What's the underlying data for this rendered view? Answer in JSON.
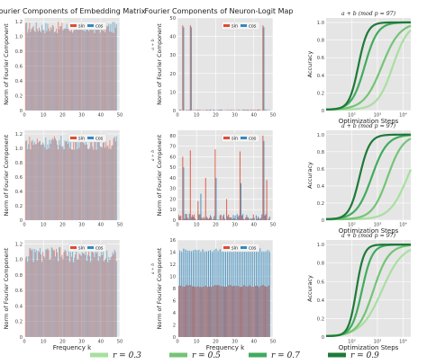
{
  "columns": {
    "embedding_title": "Fourier Components of Embedding Matrix",
    "neuron_title": "Fourier Components of Neuron-Logit Map"
  },
  "common": {
    "ylabel_fourier": "Norm of Fourier Component",
    "xlabel_frequency": "Frequency k",
    "ylabel_accuracy": "Accuracy",
    "xlabel_steps": "Optimization Steps",
    "legend_sin": "sin",
    "legend_cos": "cos",
    "acc_title": "a + b  (mod p = 97)",
    "side_label": "a + b"
  },
  "legend": {
    "items": [
      {
        "label": "r = 0.3",
        "color": "#a8dfa0"
      },
      {
        "label": "r = 0.5",
        "color": "#74c476"
      },
      {
        "label": "r = 0.7",
        "color": "#41ab5d"
      },
      {
        "label": "r = 0.9",
        "color": "#1f7a38"
      }
    ]
  },
  "colors": {
    "sin": "#e24a33",
    "cos": "#348abd",
    "panel_bg": "#e5e5e5",
    "grid": "#ffffff"
  },
  "chart_data": [
    {
      "type": "bar",
      "title": "Fourier Components of Embedding Matrix",
      "ylabel": "Norm of Fourier Component",
      "xlabel": "",
      "xlim": [
        0,
        50
      ],
      "ylim": [
        0,
        1.25
      ],
      "xticks": [
        0,
        10,
        20,
        30,
        40,
        50
      ],
      "yticks": [
        0,
        0.2,
        0.4,
        0.6,
        0.8,
        1.0,
        1.2
      ],
      "series": [
        {
          "name": "sin",
          "mode": "noise",
          "base": 1.12,
          "amp": 0.08
        },
        {
          "name": "cos",
          "mode": "noise",
          "base": 1.12,
          "amp": 0.08
        }
      ]
    },
    {
      "type": "bar",
      "title": "Fourier Components of Neuron-Logit Map",
      "ylabel": "Norm of Fourier Component",
      "xlabel": "",
      "xlim": [
        0,
        50
      ],
      "ylim": [
        0,
        50
      ],
      "xticks": [
        0,
        10,
        20,
        30,
        40,
        50
      ],
      "yticks": [
        0,
        10,
        20,
        30,
        40,
        50
      ],
      "series": [
        {
          "name": "sin",
          "mode": "spikes",
          "spikes": [
            [
              3,
              46
            ],
            [
              7,
              46
            ],
            [
              45,
              46
            ]
          ]
        },
        {
          "name": "cos",
          "mode": "spikes",
          "spikes": [
            [
              3,
              45
            ],
            [
              7,
              45
            ],
            [
              45,
              45
            ]
          ]
        }
      ]
    },
    {
      "type": "line",
      "title": "a + b (mod p = 97)",
      "ylabel": "Accuracy",
      "xlabel": "Optimization Steps",
      "xscale": "log",
      "xlim": [
        10,
        20000
      ],
      "ylim": [
        0,
        1.05
      ],
      "xticks": [
        100,
        1000,
        10000
      ],
      "yticks": [
        0,
        0.2,
        0.4,
        0.6,
        0.8,
        1.0
      ],
      "series": [
        {
          "name": "r = 0.9",
          "midpoint": 180,
          "width": 0.18
        },
        {
          "name": "r = 0.7",
          "midpoint": 320,
          "width": 0.25
        },
        {
          "name": "r = 0.5",
          "midpoint": 1500,
          "width": 0.35
        },
        {
          "name": "r = 0.3",
          "midpoint": 4000,
          "width": 0.3
        }
      ]
    },
    {
      "type": "bar",
      "title": "",
      "ylabel": "Norm of Fourier Component",
      "xlabel": "",
      "xlim": [
        0,
        50
      ],
      "ylim": [
        0,
        1.25
      ],
      "xticks": [
        0,
        10,
        20,
        30,
        40,
        50
      ],
      "yticks": [
        0,
        0.2,
        0.4,
        0.6,
        0.8,
        1.0,
        1.2
      ],
      "series": [
        {
          "name": "sin",
          "mode": "noise",
          "base": 1.08,
          "amp": 0.1
        },
        {
          "name": "cos",
          "mode": "noise",
          "base": 1.08,
          "amp": 0.1
        }
      ]
    },
    {
      "type": "bar",
      "title": "",
      "ylabel": "Norm of Fourier Component",
      "xlabel": "",
      "xlim": [
        0,
        50
      ],
      "ylim": [
        0,
        85
      ],
      "xticks": [
        0,
        10,
        20,
        30,
        40,
        50
      ],
      "yticks": [
        0,
        10,
        20,
        30,
        40,
        50,
        60,
        70,
        80
      ],
      "series": [
        {
          "name": "sin",
          "mode": "spikes",
          "spikes": [
            [
              3,
              60
            ],
            [
              7,
              66
            ],
            [
              15,
              40
            ],
            [
              20,
              67
            ],
            [
              26,
              20
            ],
            [
              33,
              65
            ],
            [
              45,
              80
            ],
            [
              47,
              38
            ],
            [
              11,
              18
            ]
          ],
          "noise": 6
        },
        {
          "name": "cos",
          "mode": "spikes",
          "spikes": [
            [
              3,
              50
            ],
            [
              12,
              25
            ],
            [
              20,
              40
            ],
            [
              33,
              35
            ],
            [
              45,
              75
            ]
          ],
          "noise": 6
        }
      ]
    },
    {
      "type": "line",
      "title": "a + b (mod p = 97)",
      "ylabel": "Accuracy",
      "xlabel": "Optimization Steps",
      "xscale": "log",
      "xlim": [
        10,
        20000
      ],
      "ylim": [
        0,
        1.05
      ],
      "xticks": [
        100,
        1000,
        10000
      ],
      "yticks": [
        0,
        0.2,
        0.4,
        0.6,
        0.8,
        1.0
      ],
      "series": [
        {
          "name": "r = 0.9",
          "midpoint": 200,
          "width": 0.2
        },
        {
          "name": "r = 0.7",
          "midpoint": 600,
          "width": 0.3
        },
        {
          "name": "r = 0.5",
          "midpoint": 2500,
          "width": 0.3
        },
        {
          "name": "r = 0.3",
          "midpoint": 15000,
          "width": 0.35
        }
      ]
    },
    {
      "type": "bar",
      "title": "",
      "ylabel": "Norm of Fourier Component",
      "xlabel": "Frequency k",
      "xlim": [
        0,
        50
      ],
      "ylim": [
        0,
        1.25
      ],
      "xticks": [
        0,
        10,
        20,
        30,
        40,
        50
      ],
      "yticks": [
        0,
        0.2,
        0.4,
        0.6,
        0.8,
        1.0,
        1.2
      ],
      "series": [
        {
          "name": "sin",
          "mode": "noise",
          "base": 1.06,
          "amp": 0.1
        },
        {
          "name": "cos",
          "mode": "noise",
          "base": 1.06,
          "amp": 0.1
        }
      ]
    },
    {
      "type": "bar",
      "title": "",
      "ylabel": "Norm of Fourier Component",
      "xlabel": "Frequency k",
      "xlim": [
        0,
        50
      ],
      "ylim": [
        0,
        16
      ],
      "xticks": [
        0,
        10,
        20,
        30,
        40,
        50
      ],
      "yticks": [
        0,
        2,
        4,
        6,
        8,
        10,
        12,
        14,
        16
      ],
      "series": [
        {
          "name": "sin",
          "mode": "flat",
          "value": 8.5
        },
        {
          "name": "cos",
          "mode": "flat",
          "value": 14.5
        }
      ]
    },
    {
      "type": "line",
      "title": "a + b (mod p = 97)",
      "ylabel": "Accuracy",
      "xlabel": "Optimization Steps",
      "xscale": "log",
      "xlim": [
        10,
        20000
      ],
      "ylim": [
        0,
        1.05
      ],
      "xticks": [
        100,
        1000,
        10000
      ],
      "yticks": [
        0,
        0.2,
        0.4,
        0.6,
        0.8,
        1.0
      ],
      "series": [
        {
          "name": "r = 0.9",
          "midpoint": 150,
          "width": 0.15
        },
        {
          "name": "r = 0.7",
          "midpoint": 250,
          "width": 0.2
        },
        {
          "name": "r = 0.5",
          "midpoint": 700,
          "width": 0.3
        },
        {
          "name": "r = 0.3",
          "midpoint": 1500,
          "width": 0.4
        }
      ]
    }
  ]
}
